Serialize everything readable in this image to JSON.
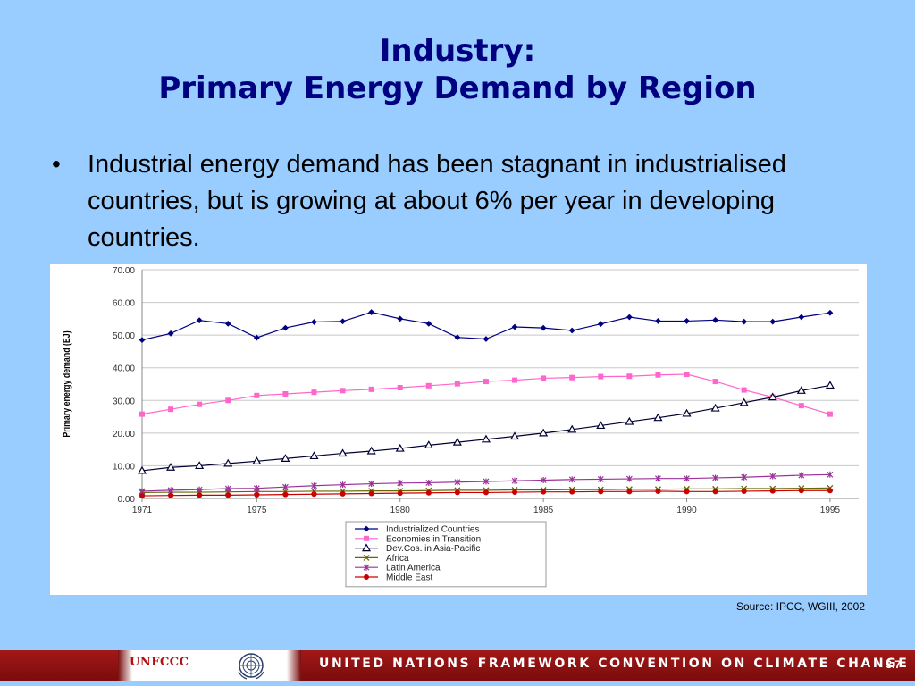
{
  "title": {
    "line1": "Industry:",
    "line2": "Primary Energy Demand by Region"
  },
  "bullet": "Industrial energy demand has been stagnant in industrialised countries, but is growing at about 6% per year in developing countries.",
  "source": "Source: IPCC, WGIII, 2002",
  "footer": {
    "logo": "UNFCCC",
    "convention": "UNITED NATIONS FRAMEWORK CONVENTION ON CLIMATE CHANGE",
    "slide_number": "3.7"
  },
  "chart_data": {
    "type": "line",
    "title": "",
    "xlabel": "",
    "ylabel": "Primary energy demand (EJ)",
    "xlim": [
      1971,
      1996
    ],
    "ylim": [
      0,
      70
    ],
    "xticks": [
      "1971",
      "1975",
      "1980",
      "1985",
      "1990",
      "1995"
    ],
    "yticks": [
      "0.00",
      "10.00",
      "20.00",
      "30.00",
      "40.00",
      "50.00",
      "60.00",
      "70.00"
    ],
    "grid": "horizontal",
    "legend_position": "bottom",
    "x": [
      1971,
      1972,
      1973,
      1974,
      1975,
      1976,
      1977,
      1978,
      1979,
      1980,
      1981,
      1982,
      1983,
      1984,
      1985,
      1986,
      1987,
      1988,
      1989,
      1990,
      1991,
      1992,
      1993,
      1994,
      1995
    ],
    "series": [
      {
        "name": "Industrialized Countries",
        "color": "#000080",
        "marker": "diamond",
        "values": [
          48.5,
          50.5,
          54.5,
          53.5,
          49.2,
          52.2,
          54.0,
          54.2,
          57.0,
          55.0,
          53.5,
          49.3,
          48.8,
          52.5,
          52.2,
          51.4,
          53.4,
          55.5,
          54.3,
          54.3,
          54.6,
          54.1,
          54.1,
          55.5,
          56.8
        ]
      },
      {
        "name": "Economies in Transition",
        "color": "#ff66cc",
        "marker": "square",
        "values": [
          25.8,
          27.3,
          28.8,
          30.0,
          31.5,
          32.0,
          32.5,
          33.0,
          33.4,
          33.9,
          34.5,
          35.1,
          35.8,
          36.2,
          36.8,
          37.0,
          37.3,
          37.4,
          37.8,
          38.0,
          35.8,
          33.2,
          31.0,
          28.4,
          25.8
        ]
      },
      {
        "name": "Dev.Cos. in Asia-Pacific",
        "color": "#000033",
        "marker": "triangle",
        "values": [
          8.5,
          9.5,
          10.0,
          10.7,
          11.4,
          12.2,
          13.0,
          13.8,
          14.5,
          15.3,
          16.3,
          17.2,
          18.1,
          19.0,
          20.0,
          21.1,
          22.3,
          23.5,
          24.7,
          26.0,
          27.6,
          29.3,
          31.0,
          33.0,
          34.6
        ]
      },
      {
        "name": "Africa",
        "color": "#666600",
        "marker": "x",
        "values": [
          1.8,
          1.9,
          1.9,
          2.0,
          2.1,
          2.1,
          2.2,
          2.2,
          2.3,
          2.3,
          2.4,
          2.5,
          2.5,
          2.6,
          2.6,
          2.7,
          2.7,
          2.8,
          2.8,
          2.9,
          2.9,
          3.0,
          3.0,
          3.1,
          3.2
        ]
      },
      {
        "name": "Latin America",
        "color": "#993399",
        "marker": "star",
        "values": [
          2.2,
          2.5,
          2.7,
          3.0,
          3.1,
          3.5,
          3.9,
          4.2,
          4.5,
          4.7,
          4.8,
          5.0,
          5.2,
          5.4,
          5.6,
          5.8,
          5.9,
          6.0,
          6.1,
          6.1,
          6.3,
          6.5,
          6.8,
          7.1,
          7.3
        ]
      },
      {
        "name": "Middle East",
        "color": "#cc0000",
        "marker": "circle",
        "values": [
          0.8,
          0.9,
          1.0,
          1.0,
          1.1,
          1.2,
          1.3,
          1.4,
          1.5,
          1.6,
          1.7,
          1.8,
          1.8,
          1.9,
          2.0,
          2.0,
          2.1,
          2.1,
          2.2,
          2.1,
          2.1,
          2.2,
          2.3,
          2.4,
          2.4
        ]
      }
    ]
  }
}
